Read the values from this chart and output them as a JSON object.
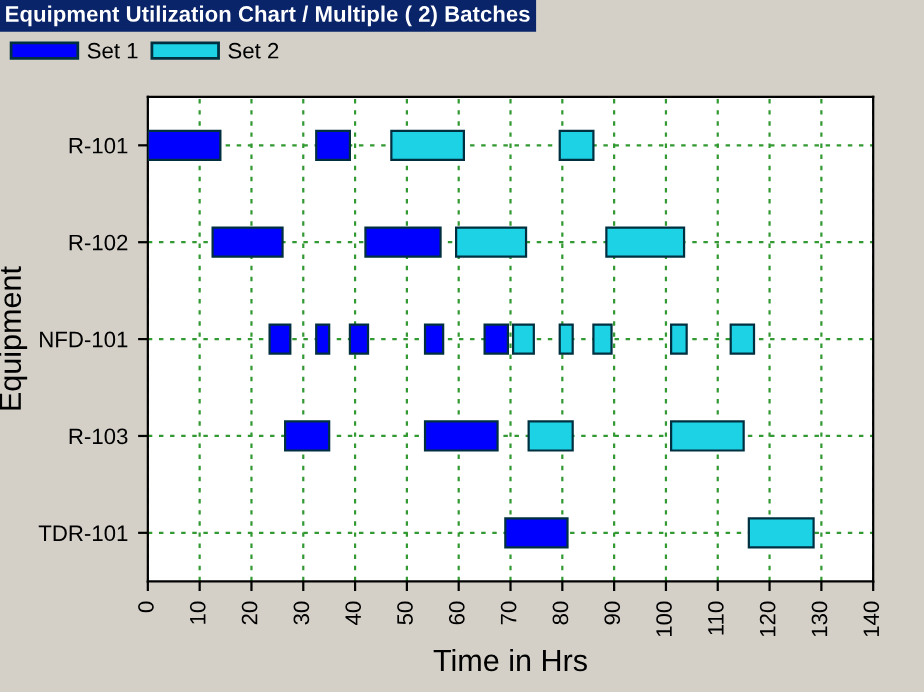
{
  "chart_data": {
    "type": "bar",
    "orientation": "horizontal",
    "title": "Equipment Utilization Chart / Multiple ( 2) Batches",
    "xlabel": "Time in Hrs",
    "ylabel": "Equipment",
    "categories": [
      "R-101",
      "R-102",
      "NFD-101",
      "R-103",
      "TDR-101"
    ],
    "series": [
      {
        "name": "Set 1",
        "color": "#0000ff",
        "base": [
          0,
          12.5,
          23.5,
          26.5,
          69
        ],
        "values": [
          14,
          13.5,
          4,
          8.5,
          12
        ]
      },
      {
        "color": "#0000ff",
        "base": [
          32.5,
          42,
          32.5,
          53.5,
          null
        ],
        "values": [
          6.5,
          14.5,
          2.5,
          14,
          null
        ]
      },
      {
        "color": "#0000ff",
        "base": [
          null,
          null,
          39,
          null,
          null
        ],
        "values": [
          null,
          null,
          3.5,
          null,
          null
        ]
      },
      {
        "color": "#0000ff",
        "base": [
          null,
          null,
          53.5,
          null,
          null
        ],
        "values": [
          null,
          null,
          3.5,
          null,
          null
        ]
      },
      {
        "color": "#0000ff",
        "base": [
          null,
          null,
          65,
          null,
          null
        ],
        "values": [
          null,
          null,
          4.5,
          null,
          null
        ]
      },
      {
        "name": "Set 2",
        "color": "#1ed2e6",
        "base": [
          47,
          59.5,
          70.5,
          73.5,
          116
        ],
        "values": [
          14,
          13.5,
          4,
          8.5,
          12.5
        ]
      },
      {
        "color": "#1ed2e6",
        "base": [
          79.5,
          88.5,
          79.5,
          101,
          null
        ],
        "values": [
          6.5,
          15,
          2.5,
          14,
          null
        ]
      },
      {
        "color": "#1ed2e6",
        "base": [
          null,
          null,
          86,
          null,
          null
        ],
        "values": [
          null,
          null,
          3.5,
          null,
          null
        ]
      },
      {
        "color": "#1ed2e6",
        "base": [
          null,
          null,
          101,
          null,
          null
        ],
        "values": [
          null,
          null,
          3,
          null,
          null
        ]
      },
      {
        "color": "#1ed2e6",
        "base": [
          null,
          null,
          112.5,
          null,
          null
        ],
        "values": [
          null,
          null,
          4.5,
          null,
          null
        ]
      }
    ],
    "xlim": [
      0,
      140
    ],
    "xticks": [
      0,
      10,
      20,
      30,
      40,
      50,
      60,
      70,
      80,
      90,
      100,
      110,
      120,
      130,
      140
    ],
    "grid": true,
    "legend": "top left"
  }
}
